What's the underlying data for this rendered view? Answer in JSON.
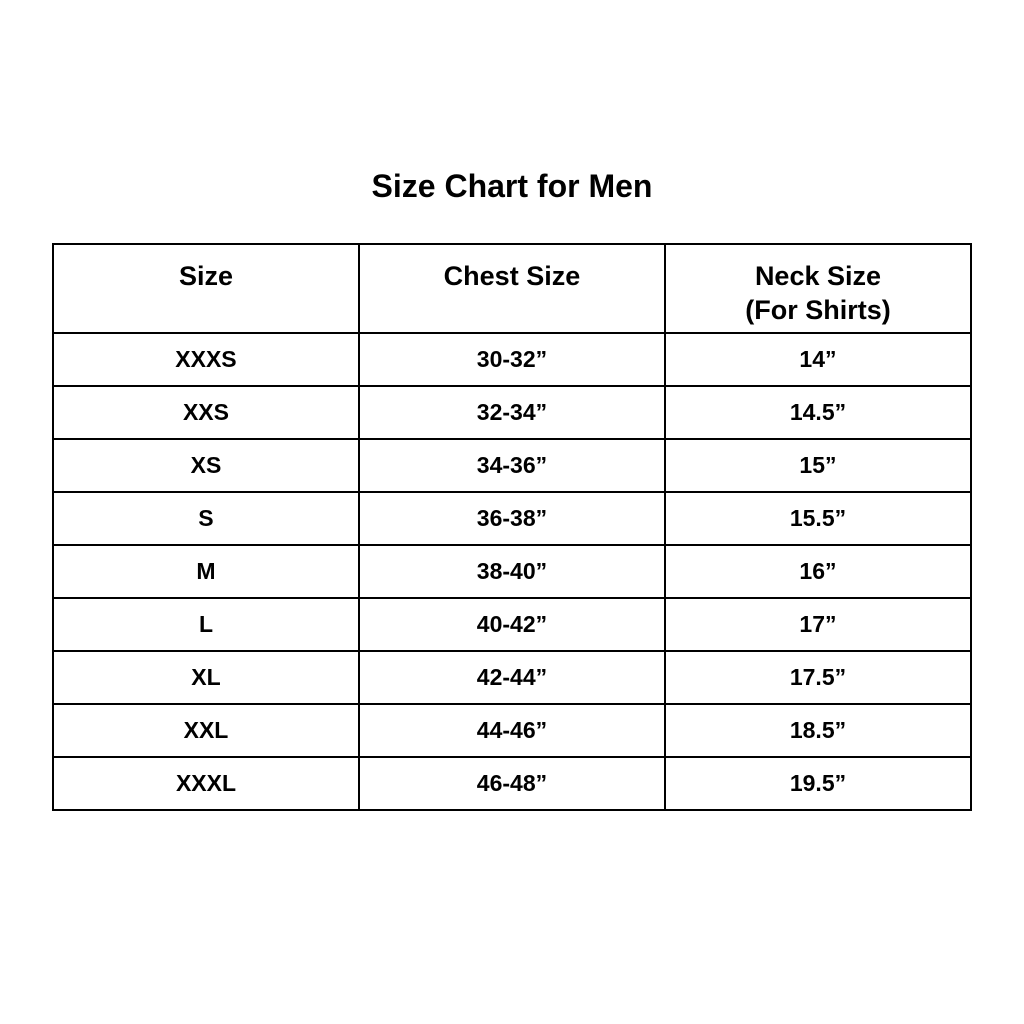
{
  "title": "Size Chart for Men",
  "headers": {
    "size": "Size",
    "chest": "Chest Size",
    "neck": "Neck Size",
    "neck_note": "(For Shirts)"
  },
  "rows": [
    {
      "size": "XXXS",
      "chest": "30-32”",
      "neck": "14”"
    },
    {
      "size": "XXS",
      "chest": "32-34”",
      "neck": "14.5”"
    },
    {
      "size": "XS",
      "chest": "34-36”",
      "neck": "15”"
    },
    {
      "size": "S",
      "chest": "36-38”",
      "neck": "15.5”"
    },
    {
      "size": "M",
      "chest": "38-40”",
      "neck": "16”"
    },
    {
      "size": "L",
      "chest": "40-42”",
      "neck": "17”"
    },
    {
      "size": "XL",
      "chest": "42-44”",
      "neck": "17.5”"
    },
    {
      "size": "XXL",
      "chest": "44-46”",
      "neck": "18.5”"
    },
    {
      "size": "XXXL",
      "chest": "46-48”",
      "neck": "19.5”"
    }
  ]
}
